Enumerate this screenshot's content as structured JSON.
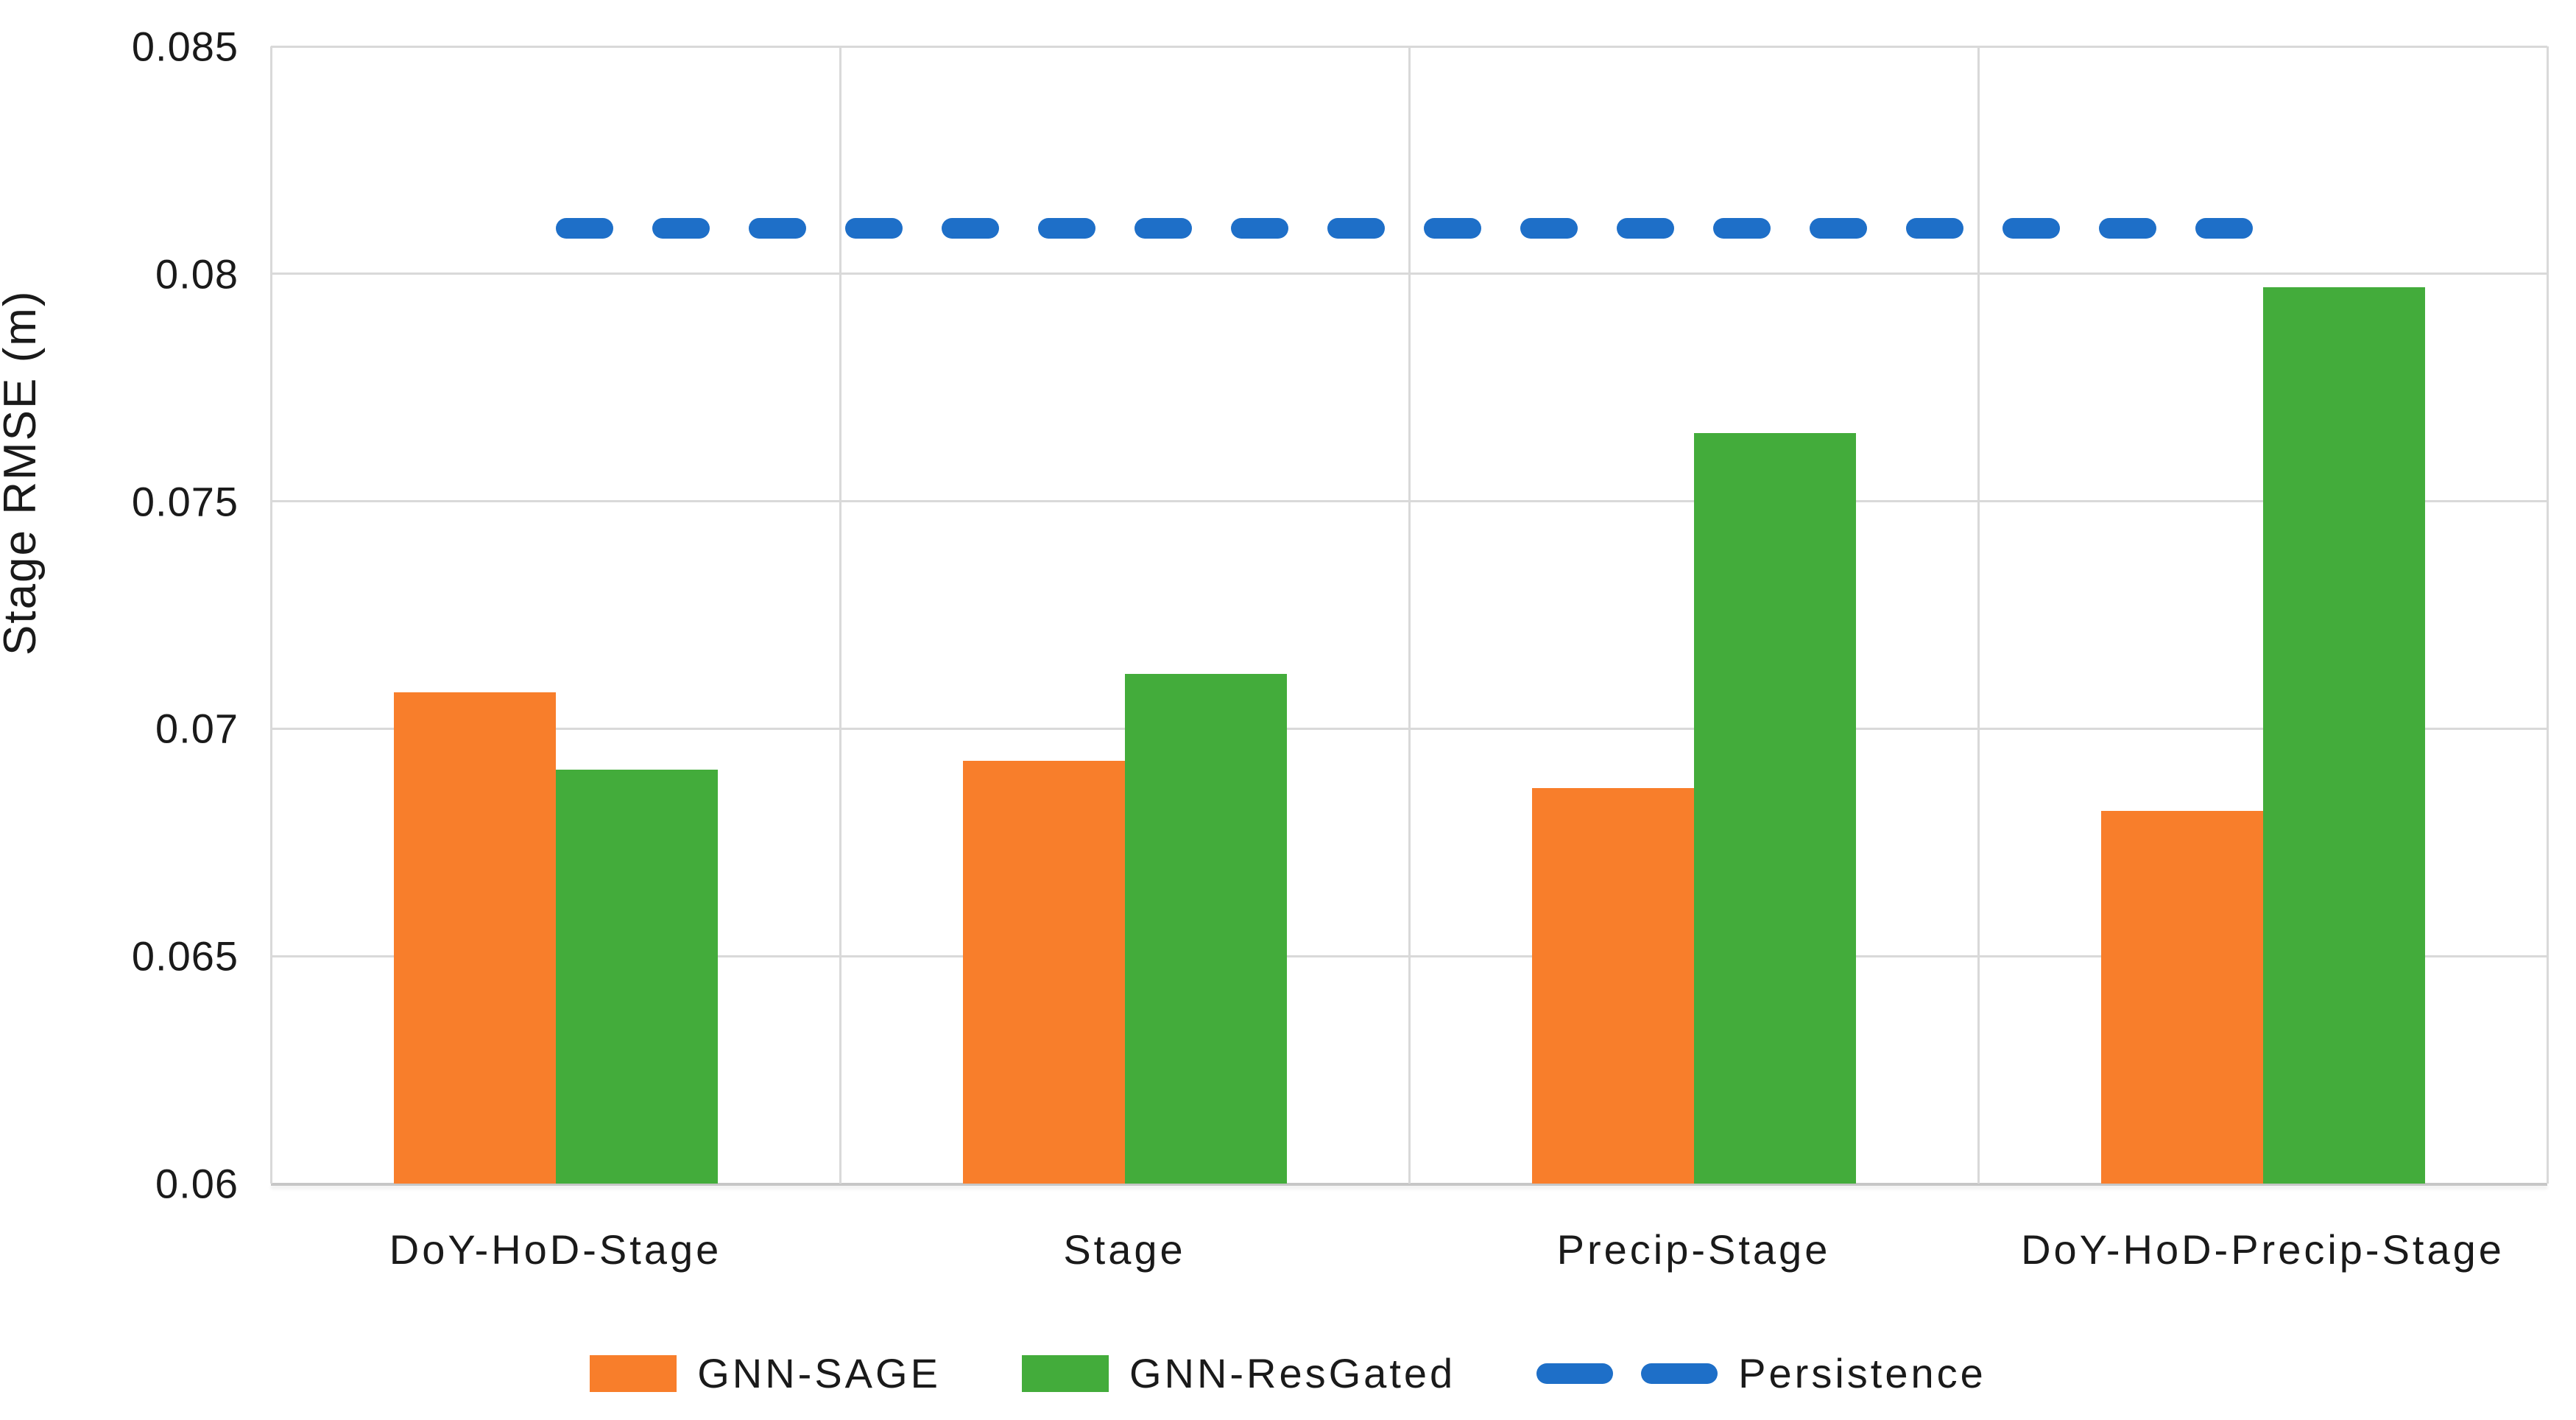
{
  "chart_data": {
    "type": "bar",
    "title": "",
    "xlabel": "",
    "ylabel": "Stage RMSE (m)",
    "ylim": [
      0.06,
      0.085
    ],
    "ytick_step": 0.005,
    "ytick_labels": [
      "0.085",
      "0.08",
      "0.075",
      "0.07",
      "0.065",
      "0.06"
    ],
    "grid": true,
    "legend_position": "bottom",
    "categories": [
      "DoY-HoD-Stage",
      "Stage",
      "Precip-Stage",
      "DoY-HoD-Precip-Stage"
    ],
    "series": [
      {
        "name": "GNN-SAGE",
        "type": "bar",
        "color": "#f87e2b",
        "values": [
          0.0708,
          0.0693,
          0.0687,
          0.0682
        ]
      },
      {
        "name": "GNN-ResGated",
        "type": "bar",
        "color": "#43ac3b",
        "values": [
          0.0691,
          0.0712,
          0.0765,
          0.0797
        ]
      },
      {
        "name": "Persistence",
        "type": "dashed-line",
        "color": "#1e6fc8",
        "value": 0.081
      }
    ]
  },
  "colors": {
    "gridline": "#d9d9d9",
    "axis_line": "#c6c6c6",
    "text": "#1a1a1a",
    "background": "#ffffff"
  }
}
